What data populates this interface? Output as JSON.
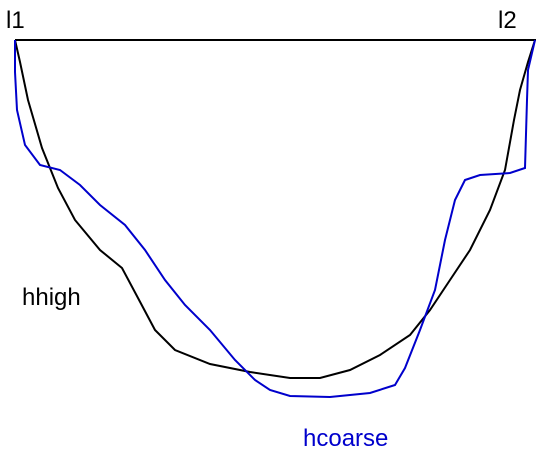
{
  "labels": {
    "left_end": "l1",
    "right_end": "l2",
    "curve_high": "hhigh",
    "curve_coarse": "hcoarse"
  }
}
